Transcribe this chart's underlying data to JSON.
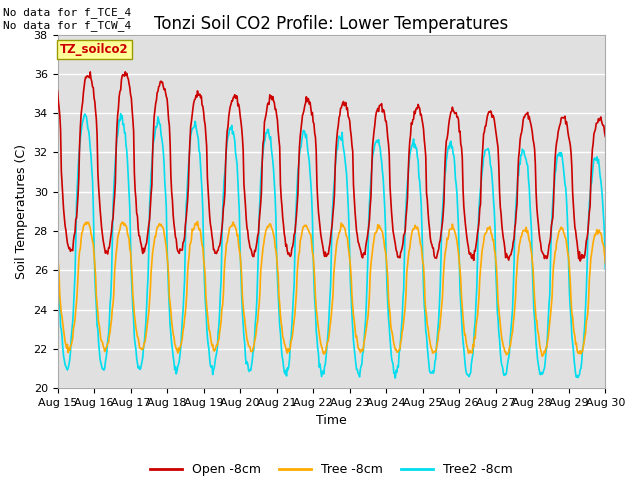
{
  "title": "Tonzi Soil CO2 Profile: Lower Temperatures",
  "ylabel": "Soil Temperatures (C)",
  "xlabel": "Time",
  "ylim": [
    20,
    38
  ],
  "xlim": [
    0,
    15
  ],
  "x_tick_labels": [
    "Aug 15",
    "Aug 16",
    "Aug 17",
    "Aug 18",
    "Aug 19",
    "Aug 20",
    "Aug 21",
    "Aug 22",
    "Aug 23",
    "Aug 24",
    "Aug 25",
    "Aug 26",
    "Aug 27",
    "Aug 28",
    "Aug 29",
    "Aug 30"
  ],
  "annotation_top": "No data for f_TCE_4\nNo data for f_TCW_4",
  "box_label": "TZ_soilco2",
  "legend_entries": [
    "Open -8cm",
    "Tree -8cm",
    "Tree2 -8cm"
  ],
  "line_colors": [
    "#cc0000",
    "#ffaa00",
    "#00ddee"
  ],
  "background_color": "#ffffff",
  "plot_bg_color": "#e0e0e0",
  "grid_color": "#ffffff",
  "title_fontsize": 12,
  "label_fontsize": 9,
  "tick_fontsize": 8
}
